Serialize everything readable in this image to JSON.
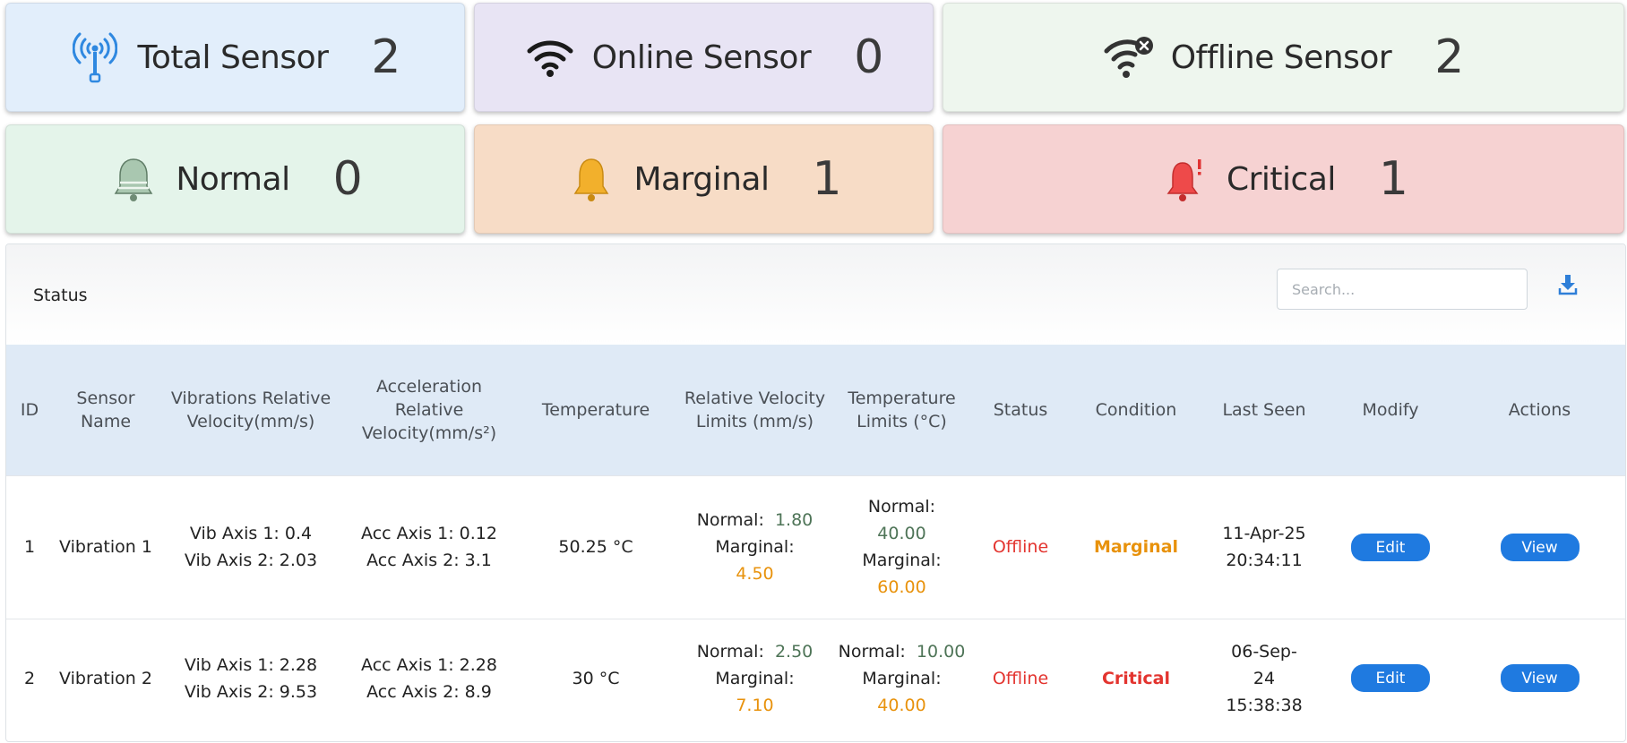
{
  "cards": [
    {
      "label": "Total Sensor",
      "value": "2",
      "icon": "antenna-icon",
      "bg": "#e2eefb"
    },
    {
      "label": "Online Sensor",
      "value": "0",
      "icon": "wifi-icon",
      "bg": "#e8e4f4"
    },
    {
      "label": "Offline Sensor",
      "value": "2",
      "icon": "wifi-off-icon",
      "bg": "#eef6ee"
    },
    {
      "label": "Normal",
      "value": "0",
      "icon": "bell-normal-icon",
      "bg": "#e4f4ea"
    },
    {
      "label": "Marginal",
      "value": "1",
      "icon": "bell-marginal-icon",
      "bg": "#f7dcc6"
    },
    {
      "label": "Critical",
      "value": "1",
      "icon": "bell-critical-icon",
      "bg": "#f6d2d2"
    }
  ],
  "panel": {
    "title": "Status",
    "search_placeholder": "Search..."
  },
  "table": {
    "headers": {
      "id": "ID",
      "sensor_name": "Sensor Name",
      "vibrations": "Vibrations Relative Velocity(mm/s)",
      "acceleration": "Acceleration Relative Velocity(mm/s²)",
      "temperature": "Temperature",
      "velocity_limits": "Relative Velocity Limits (mm/s)",
      "temperature_limits": "Temperature Limits (°C)",
      "status": "Status",
      "condition": "Condition",
      "last_seen": "Last Seen",
      "modify": "Modify",
      "actions": "Actions"
    },
    "rows": [
      {
        "id": "1",
        "name": "Vibration 1",
        "vib1": "Vib Axis 1: 0.4",
        "vib2": "Vib Axis 2: 2.03",
        "acc1": "Acc Axis 1: 0.12",
        "acc2": "Acc Axis 2: 3.1",
        "temperature": "50.25 °C",
        "vel_normal_label": "Normal:",
        "vel_normal": "1.80",
        "vel_marginal_label": "Marginal:",
        "vel_marginal": "4.50",
        "temp_normal_label": "Normal:",
        "temp_normal": "40.00",
        "temp_marginal_label": "Marginal:",
        "temp_marginal": "60.00",
        "status": "Offline",
        "condition": "Marginal",
        "last_seen_1": "11-Apr-25",
        "last_seen_2": "20:34:11",
        "edit": "Edit",
        "view": "View"
      },
      {
        "id": "2",
        "name": "Vibration 2",
        "vib1": "Vib Axis 1: 2.28",
        "vib2": "Vib Axis 2: 9.53",
        "acc1": "Acc Axis 1: 2.28",
        "acc2": "Acc Axis 2: 8.9",
        "temperature": "30 °C",
        "vel_normal_label": "Normal:",
        "vel_normal": "2.50",
        "vel_marginal_label": "Marginal:",
        "vel_marginal": "7.10",
        "temp_normal_label": "Normal:",
        "temp_normal": "10.00",
        "temp_marginal_label": "Marginal:",
        "temp_marginal": "40.00",
        "status": "Offline",
        "condition": "Critical",
        "last_seen_1": "06-Sep-",
        "last_seen_2": "24",
        "last_seen_3": "15:38:38",
        "edit": "Edit",
        "view": "View"
      }
    ]
  }
}
